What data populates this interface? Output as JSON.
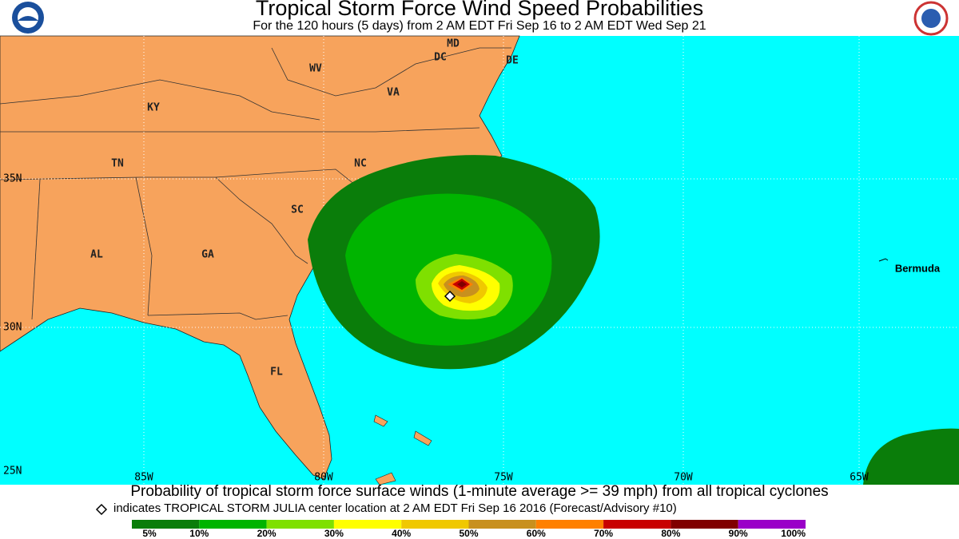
{
  "header": {
    "title": "Tropical Storm Force Wind Speed Probabilities",
    "subtitle": "For the 120 hours (5 days) from 2 AM EDT Fri Sep 16 to 2 AM EDT Wed Sep 21"
  },
  "map": {
    "states": [
      "MD",
      "DC",
      "DE",
      "WV",
      "VA",
      "KY",
      "TN",
      "NC",
      "SC",
      "AL",
      "GA",
      "FL"
    ],
    "places": [
      "Bermuda"
    ],
    "latitudes": [
      "35N",
      "30N",
      "25N"
    ],
    "longitudes": [
      "85W",
      "80W",
      "75W",
      "70W",
      "65W"
    ]
  },
  "caption": "Probability of tropical storm force surface winds (1-minute average >= 39 mph) from all tropical cyclones",
  "note": "indicates TROPICAL STORM JULIA center location at 2 AM EDT Fri Sep 16 2016 (Forecast/Advisory #10)",
  "legend": {
    "labels": [
      "5%",
      "10%",
      "20%",
      "30%",
      "40%",
      "50%",
      "60%",
      "70%",
      "80%",
      "90%",
      "100%"
    ],
    "colors": [
      "#0a7d0a",
      "#00b400",
      "#7fe000",
      "#ffff00",
      "#f0c800",
      "#c8901e",
      "#ff8000",
      "#c80000",
      "#800000",
      "#9a00c8"
    ]
  }
}
